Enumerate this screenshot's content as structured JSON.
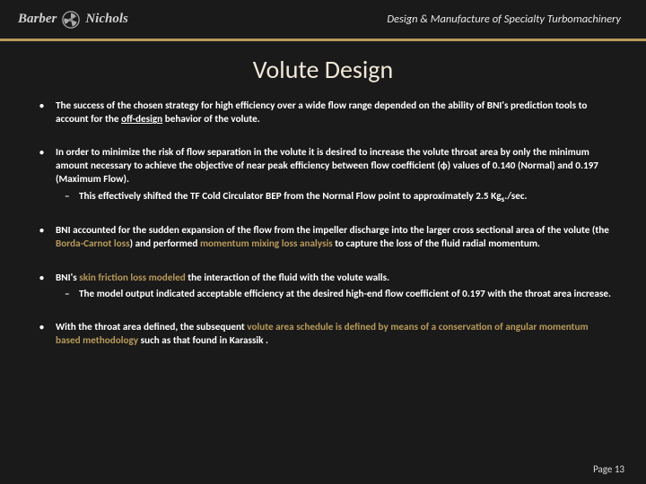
{
  "header": {
    "logo_left": "Barber",
    "logo_right": "Nichols",
    "tagline": "Design & Manufacture of Specialty Turbomachinery"
  },
  "title": "Volute Design",
  "bullets": [
    {
      "html": "The success of the chosen strategy for high efficiency over a wide flow range depended on the ability of BNI's prediction tools to account for the <span class='u'>off-design</span> behavior of the volute."
    },
    {
      "html": "In order to minimize the risk of flow separation in the volute it is desired to increase the volute throat area by only the minimum amount necessary to achieve the objective of near peak efficiency between flow coefficient (ϕ) values of 0.140 (Normal) and 0.197 (Maximum Flow).",
      "sub": [
        {
          "html": "This effectively shifted the TF Cold Circulator BEP from the Normal Flow point to approximately 2.5 Kg<sub>s</sub>./sec."
        }
      ]
    },
    {
      "html": "BNI accounted for the sudden expansion of the flow from the impeller discharge into the larger cross sectional area of the volute (the <span class='accent'>Borda-Carnot loss</span>) and performed <span class='accent'>momentum mixing loss analysis</span> to capture the loss of the fluid radial momentum."
    },
    {
      "html": "BNI's <span class='accent'>skin friction loss modeled</span> the interaction of the fluid with the volute walls.",
      "sub": [
        {
          "html": "The model output indicated acceptable efficiency at the desired high-end flow coefficient of 0.197 with the throat area increase."
        }
      ]
    },
    {
      "html": "With the throat area defined, the subsequent <span class='accent'>volute area schedule is defined by means of a conservation of angular momentum based methodology</span> such as that found in Karassik ."
    }
  ],
  "page_label": "Page 13",
  "colors": {
    "background": "#1a1a1a",
    "accent": "#b89a5a",
    "title": "#f0e8d8",
    "text": "#ffffff"
  }
}
